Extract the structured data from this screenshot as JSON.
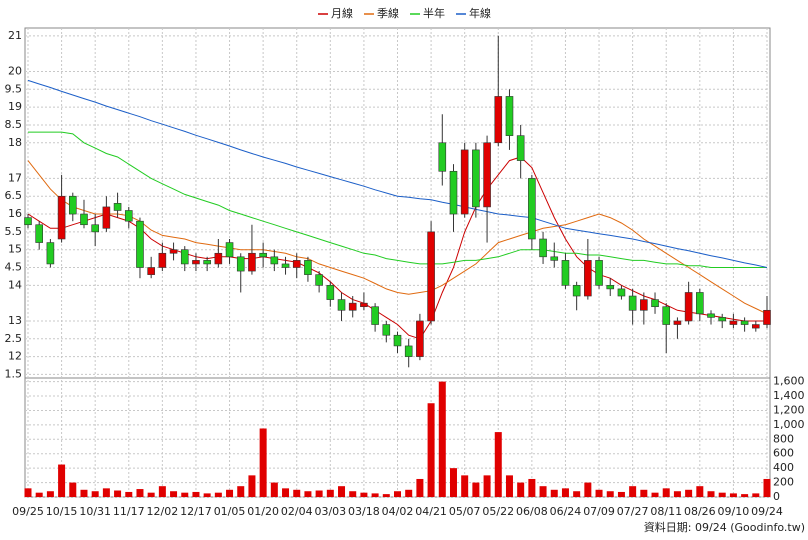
{
  "chart_data": {
    "type": "candlestick",
    "categories": [
      "09/25",
      null,
      null,
      "10/15",
      null,
      null,
      "10/31",
      null,
      null,
      "11/17",
      null,
      null,
      "12/02",
      null,
      null,
      "12/17",
      null,
      null,
      "01/05",
      null,
      null,
      "01/20",
      null,
      null,
      "02/04",
      null,
      null,
      "03/03",
      null,
      null,
      "03/18",
      null,
      null,
      "04/02",
      null,
      null,
      "04/21",
      null,
      null,
      "05/07",
      null,
      null,
      "05/22",
      null,
      null,
      "06/08",
      null,
      null,
      "06/24",
      null,
      null,
      "07/09",
      null,
      null,
      "07/27",
      null,
      null,
      "08/11",
      null,
      null,
      "08/26",
      null,
      null,
      "09/10",
      null,
      null,
      "09/24"
    ],
    "open": [
      15.9,
      15.7,
      15.2,
      15.3,
      16.5,
      16.0,
      15.7,
      15.6,
      16.3,
      16.1,
      15.8,
      14.3,
      14.5,
      14.9,
      15.0,
      14.6,
      14.7,
      14.6,
      15.2,
      14.8,
      14.4,
      14.9,
      14.8,
      14.6,
      14.5,
      14.7,
      14.3,
      14.0,
      13.6,
      13.3,
      13.4,
      13.4,
      12.9,
      12.6,
      12.3,
      12.0,
      13.0,
      18.0,
      17.2,
      16.0,
      17.8,
      16.2,
      18.0,
      19.3,
      18.2,
      17.0,
      15.3,
      14.8,
      14.7,
      14.0,
      13.7,
      14.7,
      14.0,
      13.9,
      13.7,
      13.3,
      13.6,
      13.4,
      12.9,
      13.0,
      13.8,
      13.2,
      13.1,
      12.9,
      13.0,
      12.8,
      12.9
    ],
    "high": [
      16.0,
      15.8,
      15.3,
      17.1,
      16.6,
      16.4,
      16.0,
      16.5,
      16.6,
      16.2,
      15.9,
      14.8,
      15.2,
      15.2,
      15.1,
      14.9,
      14.8,
      15.3,
      15.3,
      14.9,
      15.7,
      15.2,
      15.0,
      14.8,
      14.9,
      14.8,
      14.4,
      14.1,
      13.8,
      13.7,
      13.8,
      13.5,
      13.0,
      12.7,
      12.5,
      13.2,
      15.8,
      18.8,
      17.4,
      18.0,
      18.0,
      18.2,
      21.0,
      19.5,
      18.5,
      17.1,
      15.5,
      15.2,
      14.9,
      14.1,
      15.3,
      14.8,
      14.2,
      14.0,
      13.9,
      13.8,
      13.8,
      13.5,
      13.1,
      14.1,
      13.9,
      13.3,
      13.2,
      13.2,
      13.1,
      13.0,
      13.7
    ],
    "low": [
      15.6,
      15.0,
      14.5,
      15.2,
      15.8,
      15.6,
      15.1,
      15.5,
      15.9,
      15.6,
      14.2,
      14.2,
      14.4,
      14.7,
      14.4,
      14.4,
      14.4,
      14.5,
      14.6,
      13.8,
      14.3,
      14.5,
      14.4,
      14.3,
      14.2,
      14.1,
      13.8,
      13.4,
      13.0,
      13.1,
      13.3,
      12.7,
      12.4,
      12.1,
      11.7,
      11.9,
      12.9,
      16.8,
      15.5,
      15.9,
      15.9,
      15.2,
      17.9,
      17.8,
      17.0,
      15.0,
      14.6,
      14.5,
      13.9,
      13.3,
      13.6,
      13.9,
      13.7,
      13.6,
      12.9,
      12.9,
      13.2,
      12.1,
      12.5,
      12.9,
      13.0,
      12.9,
      12.8,
      12.8,
      12.7,
      12.7,
      12.8
    ],
    "close": [
      15.7,
      15.2,
      14.6,
      16.5,
      16.0,
      15.7,
      15.5,
      16.2,
      16.1,
      15.8,
      14.5,
      14.5,
      14.9,
      15.0,
      14.6,
      14.7,
      14.6,
      14.9,
      14.8,
      14.4,
      14.9,
      14.8,
      14.6,
      14.5,
      14.7,
      14.3,
      14.0,
      13.6,
      13.3,
      13.5,
      13.5,
      12.9,
      12.6,
      12.3,
      12.0,
      13.0,
      15.5,
      17.2,
      16.0,
      17.8,
      16.2,
      18.0,
      19.3,
      18.2,
      17.5,
      15.3,
      14.8,
      14.7,
      14.0,
      13.7,
      14.7,
      14.0,
      13.9,
      13.7,
      13.3,
      13.6,
      13.4,
      12.9,
      13.0,
      13.8,
      13.2,
      13.1,
      13.0,
      13.0,
      12.9,
      12.9,
      13.3
    ],
    "volume": [
      120,
      60,
      80,
      450,
      200,
      100,
      80,
      120,
      90,
      70,
      110,
      60,
      150,
      80,
      60,
      70,
      50,
      60,
      100,
      150,
      300,
      950,
      200,
      120,
      100,
      80,
      90,
      100,
      150,
      80,
      60,
      50,
      40,
      80,
      100,
      250,
      1300,
      1600,
      400,
      300,
      200,
      300,
      900,
      300,
      200,
      250,
      150,
      100,
      120,
      80,
      200,
      100,
      80,
      70,
      150,
      100,
      60,
      120,
      80,
      100,
      150,
      80,
      60,
      50,
      40,
      50,
      250
    ],
    "up_color": "#e00000",
    "down_color": "#22cc22",
    "volume_color": "#e00000",
    "series": [
      {
        "name": "月線",
        "color": "#cc0000",
        "values": [
          16.0,
          15.8,
          15.6,
          15.6,
          15.7,
          15.8,
          15.9,
          16.0,
          15.9,
          15.8,
          15.6,
          15.3,
          15.1,
          15.0,
          14.9,
          14.8,
          14.75,
          14.8,
          14.8,
          14.75,
          14.75,
          14.8,
          14.75,
          14.7,
          14.65,
          14.5,
          14.35,
          14.1,
          13.8,
          13.6,
          13.5,
          13.3,
          13.1,
          12.9,
          12.6,
          12.5,
          13.0,
          13.8,
          14.5,
          15.5,
          16.2,
          16.7,
          17.1,
          17.5,
          17.6,
          17.3,
          16.6,
          15.9,
          15.3,
          14.8,
          14.5,
          14.3,
          14.2,
          14.0,
          13.85,
          13.7,
          13.6,
          13.45,
          13.3,
          13.25,
          13.2,
          13.15,
          13.1,
          13.05,
          13.0,
          13.0,
          13.0
        ]
      },
      {
        "name": "季線",
        "color": "#e06a10",
        "values": [
          17.5,
          17.1,
          16.7,
          16.4,
          16.2,
          16.1,
          16.0,
          16.0,
          16.0,
          15.95,
          15.8,
          15.55,
          15.4,
          15.35,
          15.3,
          15.2,
          15.15,
          15.1,
          15.05,
          15.0,
          15.0,
          15.0,
          14.95,
          14.9,
          14.8,
          14.75,
          14.6,
          14.5,
          14.4,
          14.3,
          14.2,
          14.05,
          13.9,
          13.8,
          13.75,
          13.8,
          13.85,
          14.0,
          14.2,
          14.4,
          14.6,
          14.9,
          15.2,
          15.3,
          15.4,
          15.5,
          15.6,
          15.65,
          15.7,
          15.8,
          15.9,
          16.0,
          15.9,
          15.75,
          15.55,
          15.3,
          15.1,
          14.9,
          14.7,
          14.5,
          14.3,
          14.1,
          13.9,
          13.7,
          13.5,
          13.35,
          13.2
        ]
      },
      {
        "name": "半年",
        "color": "#22cc22",
        "values": [
          18.3,
          18.3,
          18.3,
          18.3,
          18.25,
          18.0,
          17.85,
          17.7,
          17.6,
          17.4,
          17.2,
          17.0,
          16.85,
          16.7,
          16.55,
          16.45,
          16.35,
          16.25,
          16.1,
          16.0,
          15.9,
          15.8,
          15.7,
          15.6,
          15.5,
          15.4,
          15.3,
          15.2,
          15.1,
          15.0,
          14.9,
          14.85,
          14.75,
          14.7,
          14.65,
          14.6,
          14.6,
          14.6,
          14.65,
          14.7,
          14.7,
          14.75,
          14.8,
          14.9,
          15.0,
          15.0,
          15.0,
          14.95,
          14.9,
          14.9,
          14.85,
          14.85,
          14.8,
          14.75,
          14.7,
          14.7,
          14.65,
          14.6,
          14.6,
          14.55,
          14.55,
          14.5,
          14.5,
          14.5,
          14.5,
          14.5,
          14.5
        ]
      },
      {
        "name": "年線",
        "color": "#1c5fc8",
        "values": [
          19.75,
          19.65,
          19.55,
          19.44,
          19.34,
          19.24,
          19.14,
          19.03,
          18.93,
          18.83,
          18.73,
          18.62,
          18.52,
          18.42,
          18.32,
          18.21,
          18.11,
          18.01,
          17.91,
          17.8,
          17.7,
          17.6,
          17.51,
          17.42,
          17.32,
          17.23,
          17.14,
          17.05,
          16.96,
          16.87,
          16.78,
          16.68,
          16.59,
          16.5,
          16.47,
          16.43,
          16.4,
          16.33,
          16.27,
          16.2,
          16.13,
          16.07,
          16.0,
          15.97,
          15.93,
          15.9,
          15.8,
          15.7,
          15.6,
          15.55,
          15.5,
          15.45,
          15.4,
          15.35,
          15.3,
          15.23,
          15.17,
          15.1,
          15.03,
          14.97,
          14.9,
          14.83,
          14.77,
          14.7,
          14.63,
          14.57,
          14.5
        ]
      }
    ],
    "ylim": [
      11.4,
      21.22
    ],
    "yticks": [
      21,
      {
        "value": 20,
        "label": "20"
      },
      {
        "value": 19.5,
        "label": "9.5"
      },
      19,
      {
        "value": 18.5,
        "label": "8.5"
      },
      18,
      17,
      {
        "value": 16.5,
        "label": "6.5"
      },
      16,
      {
        "value": 15.5,
        "label": "5.5"
      },
      15,
      {
        "value": 14.5,
        "label": "4.5"
      },
      14,
      13,
      {
        "value": 12.5,
        "label": "2.5"
      },
      12,
      {
        "value": 11.5,
        "label": "1.5"
      }
    ],
    "y2lim": [
      0,
      1650
    ],
    "y2ticks": [
      {
        "value": 1600,
        "label": "1,600"
      },
      {
        "value": 1400,
        "label": "1,400"
      },
      {
        "value": 1200,
        "label": "1,200"
      },
      {
        "value": 1000,
        "label": "1,000"
      },
      800,
      600,
      400,
      200,
      0
    ],
    "grid": true,
    "footnote": "資料日期: 09/24  (Goodinfo.tw)"
  }
}
